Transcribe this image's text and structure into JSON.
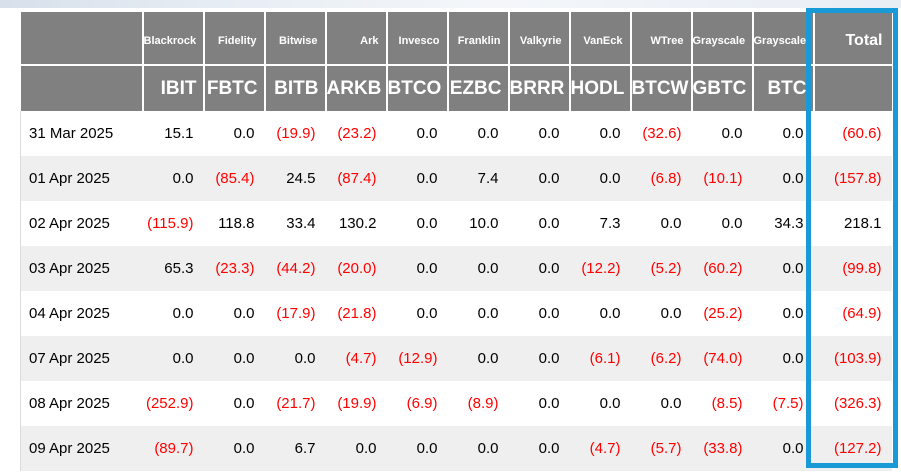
{
  "table": {
    "issuers": [
      "",
      "Blackrock",
      "Fidelity",
      "Bitwise",
      "Ark",
      "Invesco",
      "Franklin",
      "Valkyrie",
      "VanEck",
      "WTree",
      "Grayscale",
      "Grayscale",
      "Total"
    ],
    "tickers": [
      "",
      "IBIT",
      "FBTC",
      "BITB",
      "ARKB",
      "BTCO",
      "EZBC",
      "BRRR",
      "HODL",
      "BTCW",
      "GBTC",
      "BTC",
      ""
    ],
    "rows": [
      {
        "date": "31 Mar 2025",
        "values": [
          "15.1",
          "0.0",
          "(19.9)",
          "(23.2)",
          "0.0",
          "0.0",
          "0.0",
          "0.0",
          "(32.6)",
          "0.0",
          "0.0",
          "(60.6)"
        ]
      },
      {
        "date": "01 Apr 2025",
        "values": [
          "0.0",
          "(85.4)",
          "24.5",
          "(87.4)",
          "0.0",
          "7.4",
          "0.0",
          "0.0",
          "(6.8)",
          "(10.1)",
          "0.0",
          "(157.8)"
        ]
      },
      {
        "date": "02 Apr 2025",
        "values": [
          "(115.9)",
          "118.8",
          "33.4",
          "130.2",
          "0.0",
          "10.0",
          "0.0",
          "7.3",
          "0.0",
          "0.0",
          "34.3",
          "218.1"
        ]
      },
      {
        "date": "03 Apr 2025",
        "values": [
          "65.3",
          "(23.3)",
          "(44.2)",
          "(20.0)",
          "0.0",
          "0.0",
          "0.0",
          "(12.2)",
          "(5.2)",
          "(60.2)",
          "0.0",
          "(99.8)"
        ]
      },
      {
        "date": "04 Apr 2025",
        "values": [
          "0.0",
          "0.0",
          "(17.9)",
          "(21.8)",
          "0.0",
          "0.0",
          "0.0",
          "0.0",
          "0.0",
          "(25.2)",
          "0.0",
          "(64.9)"
        ]
      },
      {
        "date": "07 Apr 2025",
        "values": [
          "0.0",
          "0.0",
          "0.0",
          "(4.7)",
          "(12.9)",
          "0.0",
          "0.0",
          "(6.1)",
          "(6.2)",
          "(74.0)",
          "0.0",
          "(103.9)"
        ]
      },
      {
        "date": "08 Apr 2025",
        "values": [
          "(252.9)",
          "0.0",
          "(21.7)",
          "(19.9)",
          "(6.9)",
          "(8.9)",
          "0.0",
          "0.0",
          "0.0",
          "(8.5)",
          "(7.5)",
          "(326.3)"
        ]
      },
      {
        "date": "09 Apr 2025",
        "values": [
          "(89.7)",
          "0.0",
          "6.7",
          "0.0",
          "0.0",
          "0.0",
          "0.0",
          "(4.7)",
          "(5.7)",
          "(33.8)",
          "0.0",
          "(127.2)"
        ]
      }
    ]
  },
  "colors": {
    "header_bg": "#808080",
    "header_text": "#ffffff",
    "negative": "#ff0000",
    "positive": "#000000",
    "row_alt": "#efefef",
    "highlight_border": "#199ad6"
  },
  "highlight": {
    "column": "Total"
  }
}
